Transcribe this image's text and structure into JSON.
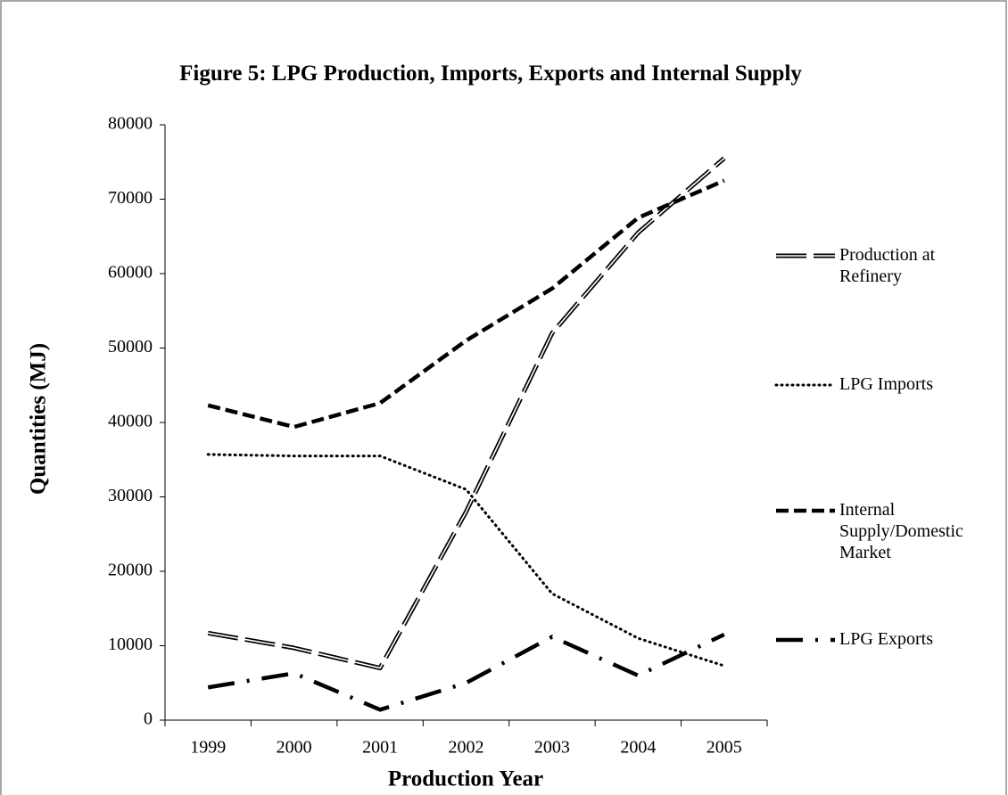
{
  "chart_data": {
    "type": "line",
    "title": "Figure 5: LPG Production, Imports, Exports and Internal Supply",
    "x_label": "Production Year",
    "y_label": "Quantities (MJ)",
    "categories": [
      "1999",
      "2000",
      "2001",
      "2002",
      "2003",
      "2004",
      "2005"
    ],
    "series": [
      {
        "name": "Production at Refinery",
        "color": "#000000",
        "values": [
          11700,
          9700,
          7000,
          28000,
          52000,
          65500,
          75500
        ]
      },
      {
        "name": "LPG Imports",
        "color": "#000000",
        "values": [
          35700,
          35500,
          35500,
          31000,
          17000,
          11000,
          7300
        ]
      },
      {
        "name": "Internal Supply/Domestic Market",
        "color": "#000000",
        "values": [
          42300,
          39400,
          42600,
          51000,
          58000,
          67500,
          72500
        ]
      },
      {
        "name": "LPG Exports",
        "color": "#000000",
        "values": [
          4400,
          6300,
          1400,
          5000,
          11200,
          6000,
          11500
        ]
      }
    ],
    "ylim": [
      0,
      80000
    ],
    "yticks": [
      0,
      10000,
      20000,
      30000,
      40000,
      50000,
      60000,
      70000,
      80000
    ],
    "grid": false,
    "legend": "right"
  }
}
